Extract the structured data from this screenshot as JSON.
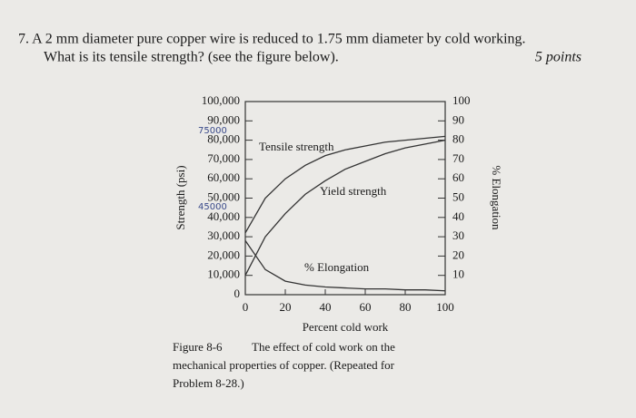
{
  "question": {
    "lines": [
      "7. A 2 mm diameter pure copper wire is reduced to 1.75 mm diameter by cold working.",
      "What is its tensile strength? (see the figure below)."
    ],
    "points": "5 points"
  },
  "chart_data": {
    "type": "line",
    "x_label": "Percent cold work",
    "y_label": "Strength (psi)",
    "y2_label": "% Elongation",
    "x": [
      0,
      10,
      20,
      30,
      40,
      50,
      60,
      70,
      80,
      90,
      100
    ],
    "series": [
      {
        "name": "Tensile strength",
        "color": "#333333",
        "values": [
          32000,
          50000,
          60000,
          67000,
          72000,
          75000,
          77000,
          79000,
          80000,
          81000,
          82000
        ]
      },
      {
        "name": "Yield strength",
        "color": "#333333",
        "values": [
          10000,
          30000,
          42000,
          52000,
          59000,
          65000,
          69000,
          73000,
          76000,
          78000,
          80000
        ]
      },
      {
        "name": "% Elongation",
        "color": "#333333",
        "axis": "y2",
        "values": [
          28,
          13,
          7,
          5,
          4,
          3.5,
          3,
          3,
          2.5,
          2.5,
          2
        ]
      }
    ],
    "xlim": [
      0,
      100
    ],
    "xticks": [
      0,
      20,
      40,
      60,
      80,
      100
    ],
    "ylim": [
      0,
      100000
    ],
    "yticks": [
      0,
      {
        "value": 10000,
        "label": "10,000"
      },
      {
        "value": 20000,
        "label": "20,000"
      },
      {
        "value": 30000,
        "label": "30,000"
      },
      {
        "value": 40000,
        "label": "40,000"
      },
      {
        "value": 50000,
        "label": "50,000"
      },
      {
        "value": 60000,
        "label": "60,000"
      },
      {
        "value": 70000,
        "label": "70,000"
      },
      {
        "value": 80000,
        "label": "80,000"
      },
      {
        "value": 90000,
        "label": "90,000"
      },
      {
        "value": 100000,
        "label": "100,000"
      }
    ],
    "y2lim": [
      0,
      100
    ],
    "y2ticks": [
      10,
      20,
      30,
      40,
      50,
      60,
      70,
      80,
      90,
      100
    ],
    "annotations": [
      "75000",
      "45000"
    ]
  },
  "figure_caption": {
    "label": "Figure 8-6",
    "lines": [
      "The effect of cold work on the",
      "mechanical properties of copper. (Repeated for",
      "Problem 8-28.)"
    ]
  }
}
